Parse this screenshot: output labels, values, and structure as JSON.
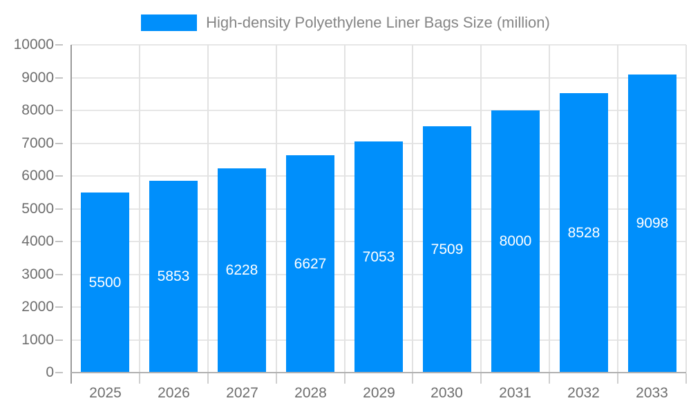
{
  "legend": {
    "label": "High-density Polyethylene Liner Bags Size (million)"
  },
  "chart_data": {
    "type": "bar",
    "title": "High-density Polyethylene Liner Bags Size (million)",
    "categories": [
      "2025",
      "2026",
      "2027",
      "2028",
      "2029",
      "2030",
      "2031",
      "2032",
      "2033"
    ],
    "series": [
      {
        "name": "High-density Polyethylene Liner Bags Size (million)",
        "values": [
          5500,
          5853,
          6228,
          6627,
          7053,
          7509,
          8000,
          8528,
          9098
        ]
      }
    ],
    "data_labels": [
      "5500",
      "5853",
      "6228",
      "6627",
      "7053",
      "7509",
      "8000",
      "8528",
      "9098"
    ],
    "xlabel": "",
    "ylabel": "",
    "ylim": [
      0,
      10000
    ],
    "y_ticks": [
      0,
      1000,
      2000,
      3000,
      4000,
      5000,
      6000,
      7000,
      8000,
      9000,
      10000
    ],
    "grid": true,
    "legend_position": "top"
  },
  "colors": {
    "bar": "#008FFB",
    "bar_label": "#ffffff",
    "legend_text": "#858585",
    "axis_text": "#6e6e6e",
    "grid_line": "#e6e6e6",
    "axis_line_y": "#9a9a9a",
    "axis_line_x": "#b0b0b0",
    "tick": "#c2c2c2",
    "background": "#ffffff"
  }
}
